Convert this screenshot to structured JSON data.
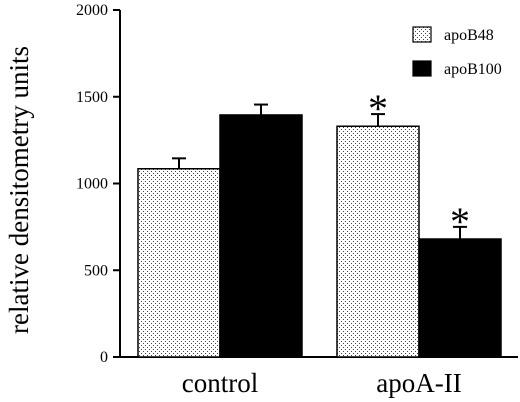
{
  "chart_data": {
    "type": "bar",
    "categories": [
      "control",
      "apoA-II"
    ],
    "series": [
      {
        "name": "apoB48",
        "values": [
          1085,
          1330
        ],
        "errors": [
          60,
          70
        ],
        "fill": "dotted"
      },
      {
        "name": "apoB100",
        "values": [
          1395,
          680
        ],
        "errors": [
          60,
          70
        ],
        "fill": "#000000"
      }
    ],
    "title": "",
    "xlabel": "",
    "ylabel": "relative densitometry units",
    "ylim": [
      0,
      2000
    ],
    "yticks": [
      "0",
      "500",
      "1000",
      "1500",
      "2000"
    ],
    "grid": false,
    "legend_position": "top-right",
    "annotations": [
      {
        "text": "*",
        "category": "apoA-II",
        "series": "apoB48"
      },
      {
        "text": "*",
        "category": "apoA-II",
        "series": "apoB100"
      }
    ]
  }
}
